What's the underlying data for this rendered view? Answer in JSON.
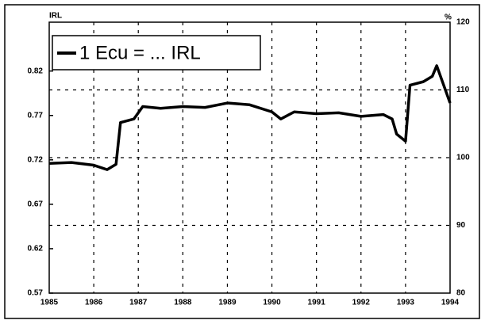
{
  "chart_data": {
    "type": "line",
    "ylabel": "IRL",
    "y2label": "%",
    "x": [
      1985.0,
      1985.5,
      1986.0,
      1986.3,
      1986.5,
      1986.6,
      1986.9,
      1987.1,
      1987.5,
      1988.0,
      1988.5,
      1989.0,
      1989.5,
      1990.0,
      1990.2,
      1990.5,
      1991.0,
      1991.5,
      1992.0,
      1992.5,
      1992.7,
      1992.8,
      1993.0,
      1993.1,
      1993.4,
      1993.6,
      1993.7,
      1993.9,
      1994.0
    ],
    "series": [
      {
        "name": "1 Ecu = ... IRL",
        "color": "#000000",
        "values": [
          0.716,
          0.717,
          0.714,
          0.709,
          0.715,
          0.762,
          0.766,
          0.78,
          0.778,
          0.78,
          0.779,
          0.784,
          0.782,
          0.774,
          0.766,
          0.774,
          0.772,
          0.773,
          0.769,
          0.771,
          0.766,
          0.749,
          0.741,
          0.804,
          0.808,
          0.814,
          0.826,
          0.798,
          0.784
        ]
      }
    ],
    "xlim": [
      1985,
      1994
    ],
    "xticks": [
      1985,
      1986,
      1987,
      1988,
      1989,
      1990,
      1991,
      1992,
      1993,
      1994
    ],
    "ylim": [
      0.57,
      0.875
    ],
    "yticks": [
      0.57,
      0.62,
      0.67,
      0.72,
      0.77,
      0.82
    ],
    "y2lim": [
      80,
      120
    ],
    "y2ticks": [
      80,
      90,
      100,
      110,
      120
    ],
    "grid": true,
    "legend": "top-left"
  }
}
